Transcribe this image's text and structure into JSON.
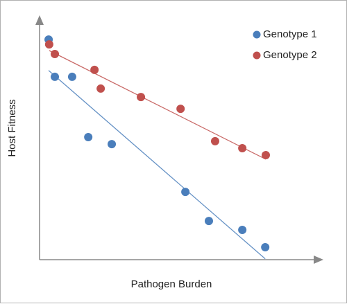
{
  "chart_data": {
    "type": "scatter",
    "x_label": "Pathogen Burden",
    "y_label": "Host Fitness",
    "xlim": [
      0,
      10
    ],
    "ylim": [
      0,
      10
    ],
    "trendline": true,
    "legend": "top-right",
    "series": [
      {
        "name": "Genotype 1",
        "color": "#4a7ebb",
        "x": [
          0.32,
          0.54,
          1.15,
          1.72,
          2.55,
          5.15,
          5.98,
          7.16,
          7.97
        ],
        "values": [
          9.16,
          7.61,
          7.61,
          5.1,
          4.81,
          2.82,
          1.61,
          1.24,
          0.52
        ]
      },
      {
        "name": "Genotype 2",
        "color": "#c0504d",
        "x": [
          0.34,
          0.54,
          1.94,
          2.16,
          3.58,
          4.98,
          6.2,
          7.16,
          7.99
        ],
        "values": [
          8.96,
          8.56,
          7.9,
          7.12,
          6.77,
          6.28,
          4.93,
          4.64,
          4.35
        ]
      }
    ]
  }
}
